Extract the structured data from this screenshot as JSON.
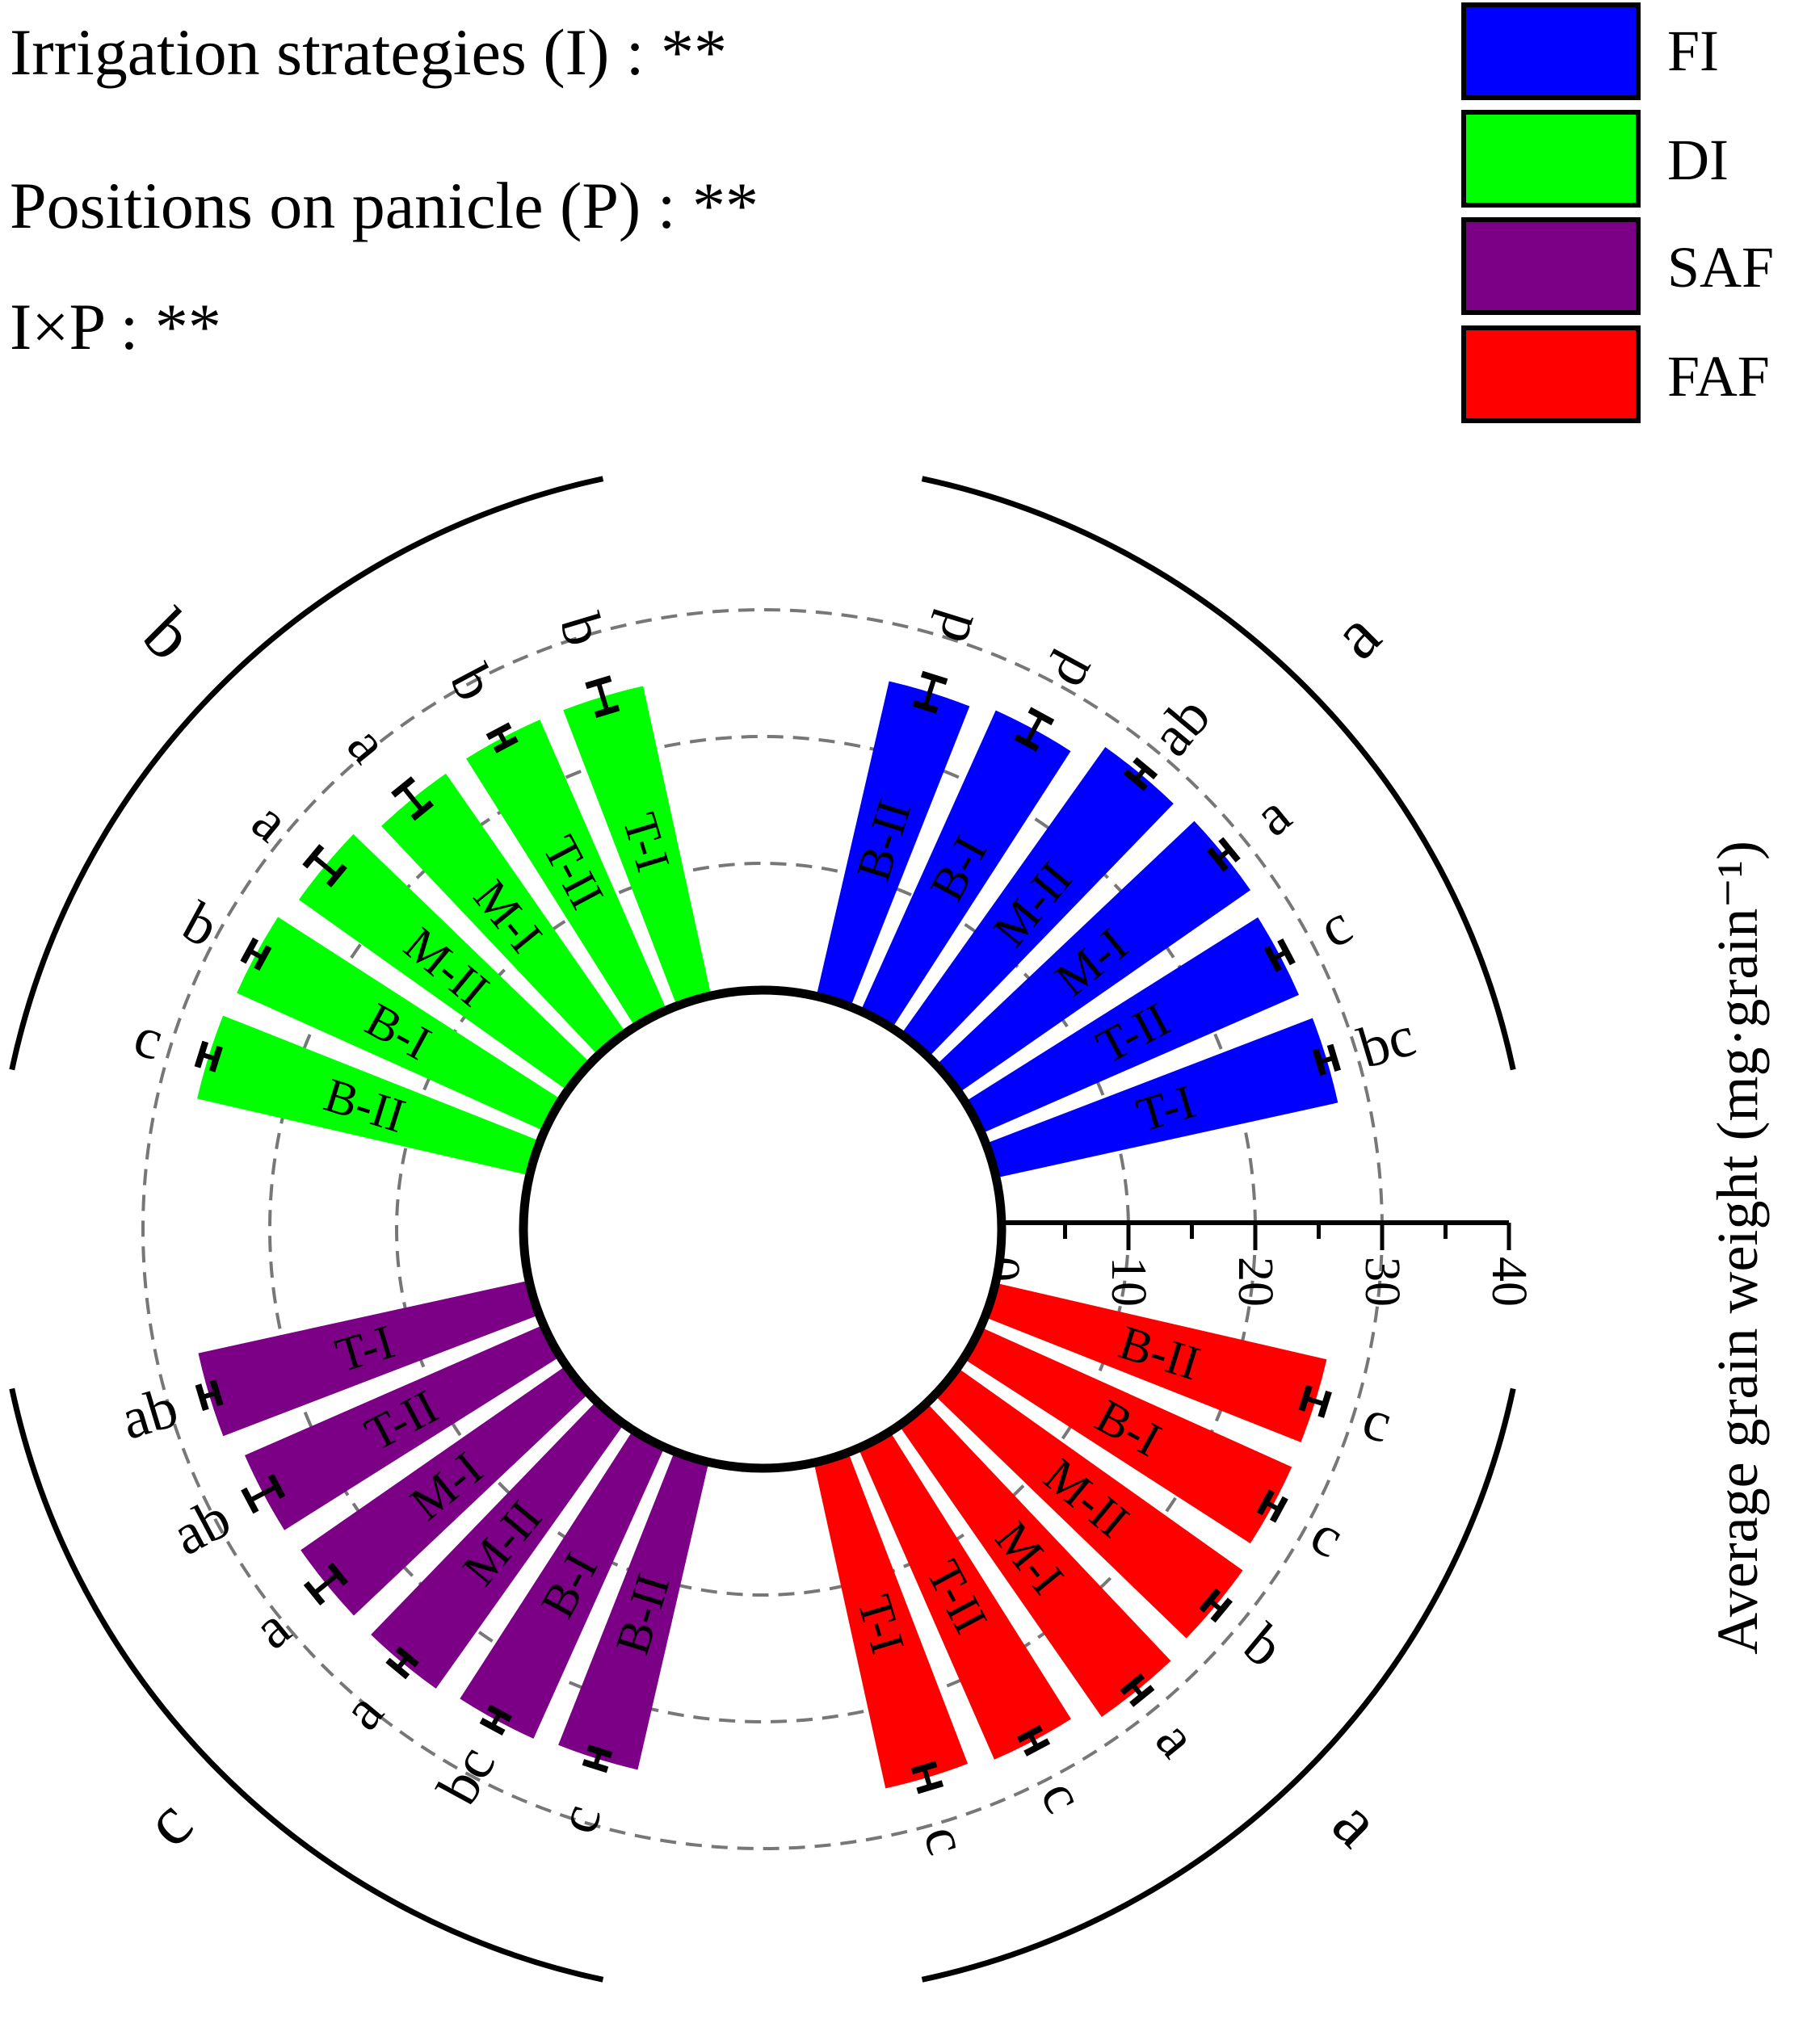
{
  "significance": [
    "Irrigation strategies (I) : **",
    "Positions on panicle (P) : **",
    "I×P : **"
  ],
  "colors": {
    "FI": "#0000ff",
    "DI": "#00ff00",
    "SAF": "#7b0085",
    "FAF": "#ff0000"
  },
  "chart_data": {
    "type": "radial-bar",
    "title": "",
    "ylabel": "Average grain weight (mg·grain⁻¹)",
    "ylim": [
      0,
      40
    ],
    "yticks": [
      "0",
      "10",
      "20",
      "30",
      "40"
    ],
    "grid": "dashed circles at 0, 10, 20, 30",
    "legend": {
      "position": "top-right",
      "entries": [
        "FI",
        "DI",
        "SAF",
        "FAF"
      ]
    },
    "groups": [
      {
        "name": "FI",
        "letter": "a",
        "bars": [
          {
            "label": "B-II",
            "value": 25.5,
            "error": 1.2,
            "letter": "d"
          },
          {
            "label": "B-I",
            "value": 26.0,
            "error": 1.2,
            "letter": "d"
          },
          {
            "label": "M-II",
            "value": 27.8,
            "error": 0.6,
            "letter": "ab"
          },
          {
            "label": "M-I",
            "value": 28.0,
            "error": 0.6,
            "letter": "a"
          },
          {
            "label": "T-II",
            "value": 27.3,
            "error": 0.6,
            "letter": "c"
          },
          {
            "label": "T-I",
            "value": 27.6,
            "error": 0.6,
            "letter": "bc"
          }
        ]
      },
      {
        "name": "FAF",
        "letter": "a",
        "bars": [
          {
            "label": "B-II",
            "value": 26.8,
            "error": 0.8,
            "letter": "c"
          },
          {
            "label": "B-I",
            "value": 26.9,
            "error": 0.6,
            "letter": "c"
          },
          {
            "label": "M-II",
            "value": 27.6,
            "error": 0.6,
            "letter": "b"
          },
          {
            "label": "M-I",
            "value": 28.0,
            "error": 0.6,
            "letter": "a"
          },
          {
            "label": "T-II",
            "value": 26.8,
            "error": 0.6,
            "letter": "c"
          },
          {
            "label": "T-I",
            "value": 26.3,
            "error": 0.8,
            "letter": "c"
          }
        ]
      },
      {
        "name": "SAF",
        "letter": "c",
        "bars": [
          {
            "label": "B-II",
            "value": 24.9,
            "error": 0.6,
            "letter": "c"
          },
          {
            "label": "B-I",
            "value": 25.2,
            "error": 0.6,
            "letter": "bc"
          },
          {
            "label": "M-II",
            "value": 25.6,
            "error": 0.6,
            "letter": "a"
          },
          {
            "label": "M-I",
            "value": 25.5,
            "error": 1.2,
            "letter": "a"
          },
          {
            "label": "T-II",
            "value": 25.7,
            "error": 1.2,
            "letter": "ab"
          },
          {
            "label": "T-I",
            "value": 26.7,
            "error": 0.6,
            "letter": "ab"
          }
        ]
      },
      {
        "name": "DI",
        "letter": "b",
        "bars": [
          {
            "label": "B-II",
            "value": 26.9,
            "error": 0.6,
            "letter": "c"
          },
          {
            "label": "B-I",
            "value": 26.6,
            "error": 0.6,
            "letter": "b"
          },
          {
            "label": "M-II",
            "value": 26.0,
            "error": 1.2,
            "letter": "a"
          },
          {
            "label": "M-I",
            "value": 24.9,
            "error": 1.2,
            "letter": "a"
          },
          {
            "label": "T-II",
            "value": 25.0,
            "error": 0.6,
            "letter": "b"
          },
          {
            "label": "T-I",
            "value": 25.0,
            "error": 1.2,
            "letter": "b"
          }
        ]
      }
    ]
  }
}
